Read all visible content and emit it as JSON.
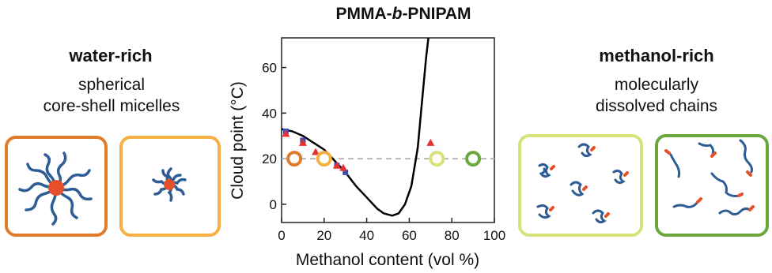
{
  "title": {
    "pre": "PMMA-",
    "ital": "b",
    "post": "-PNIPAM"
  },
  "left": {
    "header": "water-rich",
    "desc_line1": "spherical",
    "desc_line2": "core-shell micelles"
  },
  "right": {
    "header": "methanol-rich",
    "desc_line1": "molecularly",
    "desc_line2": "dissolved chains"
  },
  "colors": {
    "orange_dark": "#e07b2a",
    "orange_light": "#f5b042",
    "green_light": "#d7e27a",
    "green_dark": "#6aa83e",
    "chain_blue": "#2e5d95",
    "core_red": "#e5502a",
    "triangles": "#e8312f",
    "squares": "#3b4fb8",
    "curve": "#000000",
    "dashed": "#b8b8b8"
  },
  "chart_data": {
    "type": "scatter",
    "xlabel": "Methanol content (vol %)",
    "ylabel": "Cloud point (°C)",
    "xlim": [
      0,
      100
    ],
    "ylim": [
      -8,
      73
    ],
    "xticks": [
      "0",
      "20",
      "40",
      "60",
      "80",
      "100"
    ],
    "yticks": [
      "0",
      "20",
      "40",
      "60"
    ],
    "dashed_line_y": 20,
    "curve": [
      [
        0,
        33
      ],
      [
        5,
        32
      ],
      [
        10,
        30
      ],
      [
        15,
        27
      ],
      [
        20,
        24
      ],
      [
        25,
        19
      ],
      [
        30,
        14
      ],
      [
        35,
        8
      ],
      [
        40,
        3
      ],
      [
        45,
        -2
      ],
      [
        48,
        -4
      ],
      [
        52,
        -5
      ],
      [
        55,
        -4
      ],
      [
        58,
        0
      ],
      [
        61,
        8
      ],
      [
        64,
        25
      ],
      [
        66,
        45
      ],
      [
        68,
        65
      ],
      [
        69,
        73
      ]
    ],
    "triangles": [
      [
        2,
        31
      ],
      [
        10,
        27
      ],
      [
        16,
        23
      ],
      [
        21,
        21
      ],
      [
        26,
        17
      ],
      [
        29,
        16
      ],
      [
        70,
        27
      ]
    ],
    "squares": [
      [
        2,
        32
      ],
      [
        10,
        28
      ],
      [
        20,
        20
      ],
      [
        26,
        17
      ],
      [
        30,
        14
      ]
    ],
    "rings": [
      {
        "x": 6,
        "y": 20,
        "color": "#e07b2a"
      },
      {
        "x": 20,
        "y": 20,
        "color": "#f5b042"
      },
      {
        "x": 73,
        "y": 20,
        "color": "#d7e27a"
      },
      {
        "x": 90,
        "y": 20,
        "color": "#6aa83e"
      }
    ]
  }
}
